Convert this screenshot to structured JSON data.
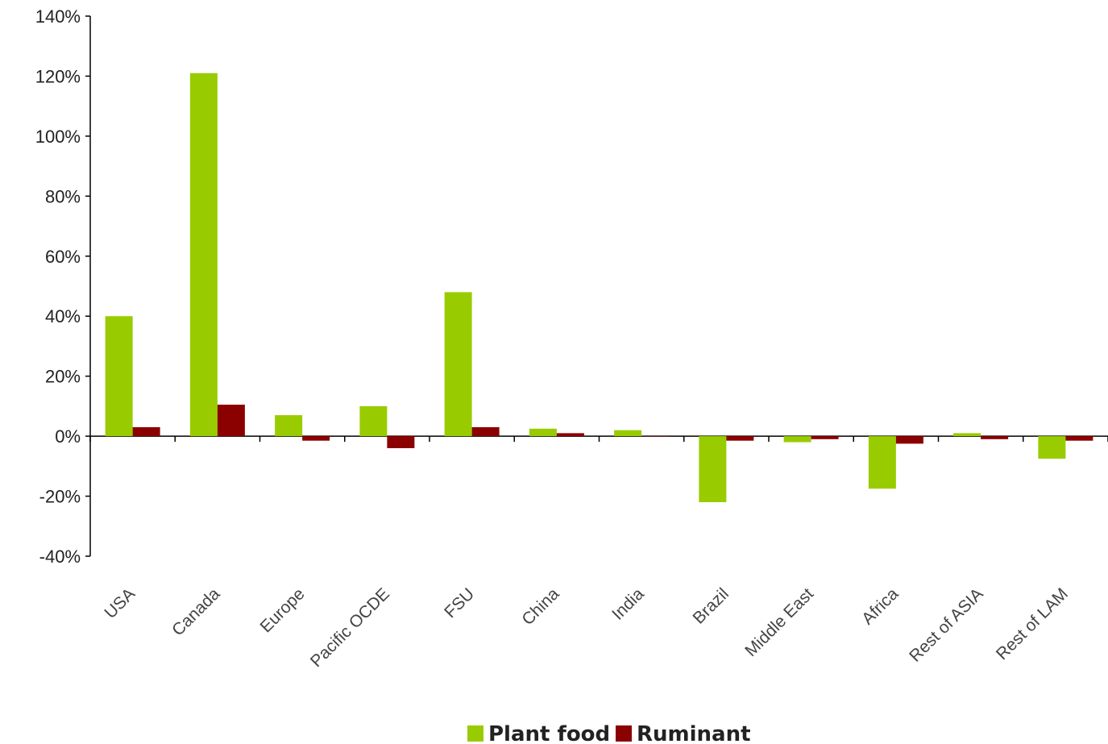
{
  "colors": {
    "plant_food": "#99CC00",
    "ruminant": "#8B0000",
    "axis": "#000000"
  },
  "chart_data": {
    "type": "bar",
    "categories": [
      "USA",
      "Canada",
      "Europe",
      "Pacific OCDE",
      "FSU",
      "China",
      "India",
      "Brazil",
      "Middle East",
      "Africa",
      "Rest of ASIA",
      "Rest of LAM"
    ],
    "series": [
      {
        "name": "Plant food",
        "values": [
          40,
          121,
          7,
          10,
          48,
          2.5,
          2,
          -22,
          -2,
          -17.5,
          1,
          -7.5
        ]
      },
      {
        "name": "Ruminant",
        "values": [
          3,
          10.5,
          -1.5,
          -4,
          3,
          1,
          0,
          -1.5,
          -1,
          -2.5,
          -1,
          -1.5
        ]
      }
    ],
    "ylim": [
      -40,
      140
    ],
    "yticks": [
      "140%",
      "120%",
      "100%",
      "80%",
      "60%",
      "40%",
      "20%",
      "0%",
      "-20%",
      "-40%"
    ],
    "ytick_values": [
      140,
      120,
      100,
      80,
      60,
      40,
      20,
      0,
      -20,
      -40
    ],
    "legend_position": "bottom",
    "grid": false
  }
}
